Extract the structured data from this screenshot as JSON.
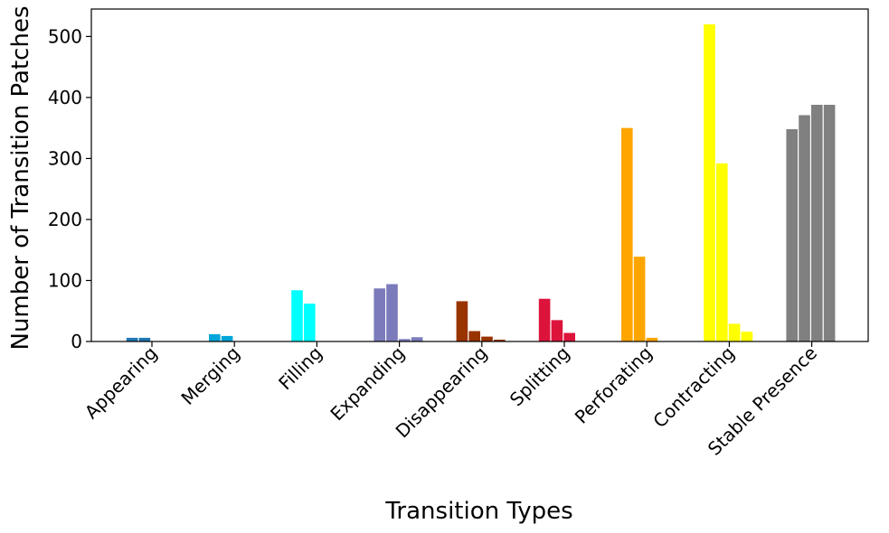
{
  "chart_data": {
    "type": "bar",
    "title": "",
    "xlabel": "Transition Types",
    "ylabel": "Number of Transition Patches",
    "ylim": [
      0,
      545
    ],
    "yticks": [
      0,
      100,
      200,
      300,
      400,
      500
    ],
    "grid": false,
    "legend": "none",
    "categories": [
      "Appearing",
      "Merging",
      "Filling",
      "Expanding",
      "Disappearing",
      "Splitting",
      "Perforating",
      "Contracting",
      "Stable Presence"
    ],
    "series": [
      {
        "values": [
          6,
          12,
          84,
          87,
          66,
          70,
          350,
          520,
          348
        ]
      },
      {
        "values": [
          6,
          9,
          62,
          94,
          17,
          35,
          139,
          292,
          371
        ]
      },
      {
        "values": [
          0,
          0,
          0,
          4,
          8,
          14,
          6,
          29,
          388
        ]
      },
      {
        "values": [
          0,
          0,
          0,
          7,
          3,
          0,
          0,
          16,
          388
        ]
      }
    ],
    "category_colors": [
      "#1f77b4",
      "#00a6d9",
      "#00ffff",
      "#7b7bbb",
      "#993300",
      "#dc143c",
      "#ffa500",
      "#ffff00",
      "#808080"
    ]
  }
}
